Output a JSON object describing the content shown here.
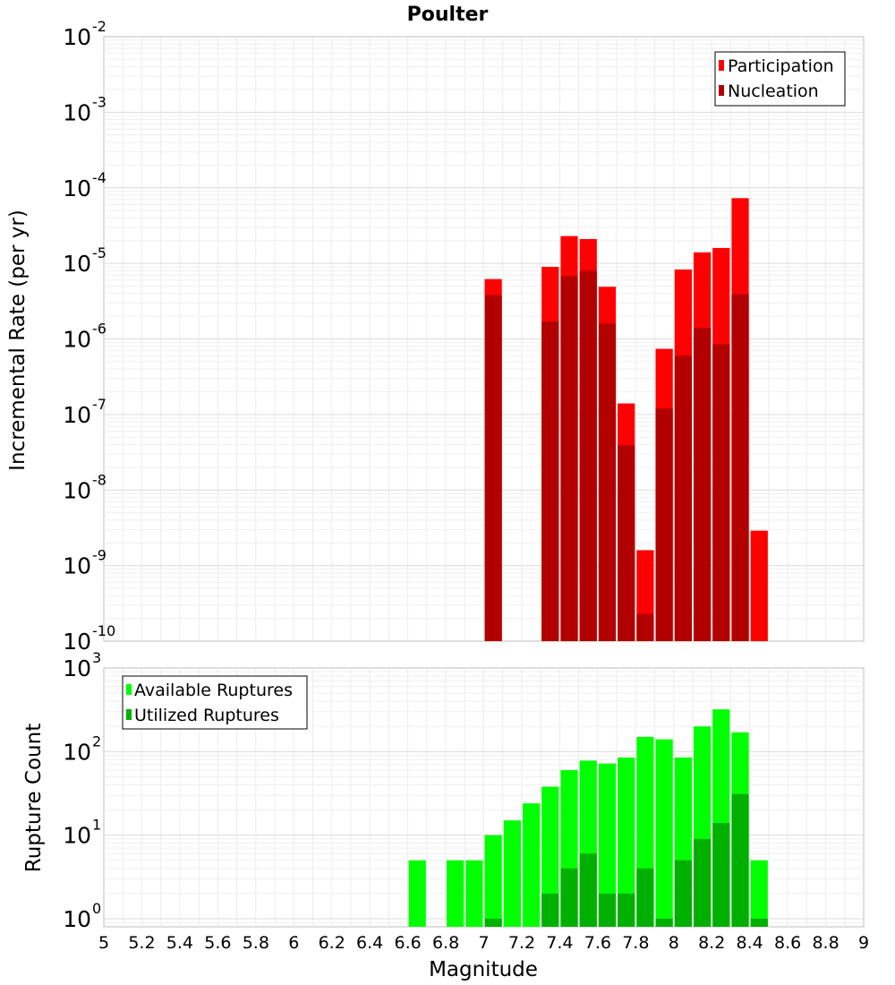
{
  "title": "Poulter",
  "xlabel": "Magnitude",
  "x_ticks": [
    "5",
    "5.2",
    "5.4",
    "5.6",
    "5.8",
    "6",
    "6.2",
    "6.4",
    "6.6",
    "6.8",
    "7",
    "7.2",
    "7.4",
    "7.6",
    "7.8",
    "8",
    "8.2",
    "8.4",
    "8.6",
    "8.8",
    "9"
  ],
  "chart_data": [
    {
      "type": "bar",
      "title": "Poulter",
      "xlabel": "Magnitude",
      "ylabel": "Incremental Rate (per yr)",
      "xlim": [
        5,
        9
      ],
      "ylim": [
        1e-10,
        0.01
      ],
      "y_scale": "log",
      "grid": true,
      "legend_position": "top-right",
      "x": [
        7.05,
        7.35,
        7.45,
        7.55,
        7.65,
        7.75,
        7.85,
        7.95,
        8.05,
        8.15,
        8.25,
        8.35,
        8.45
      ],
      "series": [
        {
          "name": "Participation",
          "color": "#ff0000",
          "values": [
            6.2e-06,
            9e-06,
            2.3e-05,
            2.1e-05,
            4.9e-06,
            1.4e-07,
            1.6e-09,
            7.4e-07,
            8.3e-06,
            1.4e-05,
            1.6e-05,
            7.3e-05,
            2.9e-09
          ]
        },
        {
          "name": "Nucleation",
          "color": "#b20000",
          "values": [
            3.8e-06,
            1.7e-06,
            6.8e-06,
            8e-06,
            1.6e-06,
            3.9e-08,
            2.3e-10,
            1.2e-07,
            6e-07,
            1.4e-06,
            8.5e-07,
            3.9e-06,
            null
          ]
        }
      ],
      "y_ticks": [
        {
          "base": "10",
          "exp": "-2"
        },
        {
          "base": "10",
          "exp": "-3"
        },
        {
          "base": "10",
          "exp": "-4"
        },
        {
          "base": "10",
          "exp": "-5"
        },
        {
          "base": "10",
          "exp": "-6"
        },
        {
          "base": "10",
          "exp": "-7"
        },
        {
          "base": "10",
          "exp": "-8"
        },
        {
          "base": "10",
          "exp": "-9"
        },
        {
          "base": "10",
          "exp": "-10"
        }
      ]
    },
    {
      "type": "bar",
      "xlabel": "Magnitude",
      "ylabel": "Rupture Count",
      "xlim": [
        5,
        9
      ],
      "ylim": [
        0.8,
        1000
      ],
      "y_scale": "log",
      "grid": true,
      "legend_position": "top-left",
      "x": [
        6.65,
        6.85,
        6.95,
        7.05,
        7.15,
        7.25,
        7.35,
        7.45,
        7.55,
        7.65,
        7.75,
        7.85,
        7.95,
        8.05,
        8.15,
        8.25,
        8.35,
        8.45
      ],
      "series": [
        {
          "name": "Available Ruptures",
          "color": "#00ff00",
          "values": [
            5,
            5,
            5,
            10,
            15,
            24,
            38,
            60,
            78,
            72,
            85,
            150,
            140,
            85,
            200,
            320,
            170,
            5
          ]
        },
        {
          "name": "Utilized Ruptures",
          "color": "#00b000",
          "values": [
            null,
            null,
            null,
            1,
            null,
            null,
            2,
            4,
            6,
            2,
            2,
            4,
            1,
            5,
            9,
            14,
            31,
            1
          ]
        }
      ],
      "y_ticks": [
        {
          "base": "10",
          "exp": "3"
        },
        {
          "base": "10",
          "exp": "2"
        },
        {
          "base": "10",
          "exp": "1"
        },
        {
          "base": "10",
          "exp": "0"
        }
      ]
    }
  ]
}
